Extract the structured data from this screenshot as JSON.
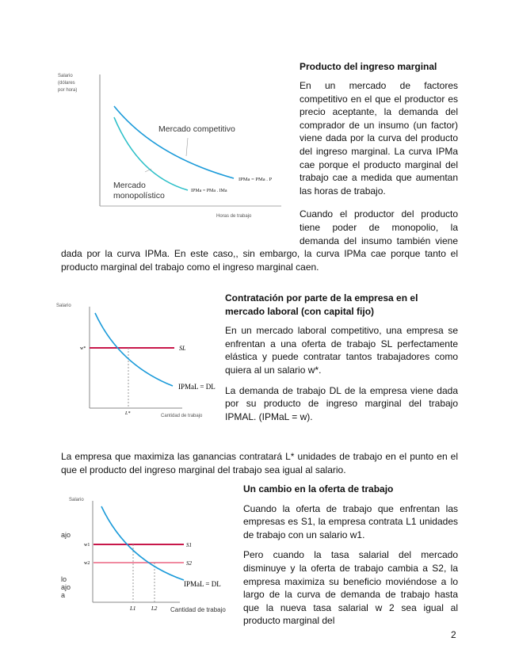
{
  "section1": {
    "title": "Producto del ingreso marginal",
    "p1": "En un mercado de factores competitivo en el que el productor es precio aceptante, la demanda del comprador de un insumo (un factor) viene dada por la curva del producto del ingreso marginal. La curva IPMa cae porque el producto marginal del trabajo cae a medida que aumentan las horas de trabajo.",
    "p2": "Cuando el productor del producto tiene poder de monopolio, la demanda del insumo también viene dada por la curva IPMa. En este caso,, sin embargo, la curva IPMa cae porque tanto el producto marginal del trabajo como el ingreso marginal caen.",
    "figure": {
      "ylabel1": "Salario",
      "ylabel2": "(dólares",
      "ylabel3": "por hora)",
      "xlabel": "Horas de trabajo",
      "comp": "Mercado competitivo",
      "mono1": "Mercado",
      "mono2": "monopolístico",
      "comp_curve": "IPMa = PMa . P",
      "mono_curve": "IPMa = PMa . IMa"
    }
  },
  "section2": {
    "title": "Contratación por parte de la empresa en el mercado laboral (con capital fijo)",
    "p1": "En un mercado laboral competitivo, una empresa se enfrentan a una oferta de trabajo SL perfectamente elástica y puede contratar tantos trabajadores como quiera al un salario w*.",
    "p2": "La demanda de trabajo DL de la empresa viene dada por su producto de ingreso marginal del trabajo IPMAL. (IPMaL = w).",
    "figure": {
      "ylabel": "Salario",
      "xlabel": "Cantidad de trabajo",
      "w": "w*",
      "s": "SL",
      "d": "IPMaL = DL",
      "l": "L*"
    }
  },
  "between": "La empresa que maximiza las ganancias contratará L* unidades de trabajo en el punto en el que el producto del ingreso marginal del trabajo sea igual al salario.",
  "section3": {
    "title": "Un cambio en la oferta de trabajo",
    "p1": "Cuando la oferta de trabajo que enfrentan las empresas es S1, la empresa contrata L1 unidades de trabajo con un salario w1.",
    "p2": "Pero cuando la tasa salarial del mercado disminuye y la oferta de trabajo cambia a S2, la empresa maximiza su beneficio moviéndose a lo largo de la curva de demanda de trabajo hasta que la nueva tasa salarial w 2 sea igual al producto marginal del",
    "figure": {
      "ylabel": "Salario",
      "xlabel": "Cantidad de trabajo",
      "w1": "w1",
      "w2": "w2",
      "s1": "S1",
      "s2": "S2",
      "d": "IPMaL = DL",
      "l1": "L1",
      "l2": "L2",
      "frag1": "ajo",
      "frag2": "lo",
      "frag3": "ajo",
      "frag4": "a"
    }
  },
  "page_number": "2",
  "colors": {
    "blue": "#1a9ad9",
    "teal": "#2bbfc8",
    "red": "#c8174a",
    "pink": "#f08aa0"
  }
}
